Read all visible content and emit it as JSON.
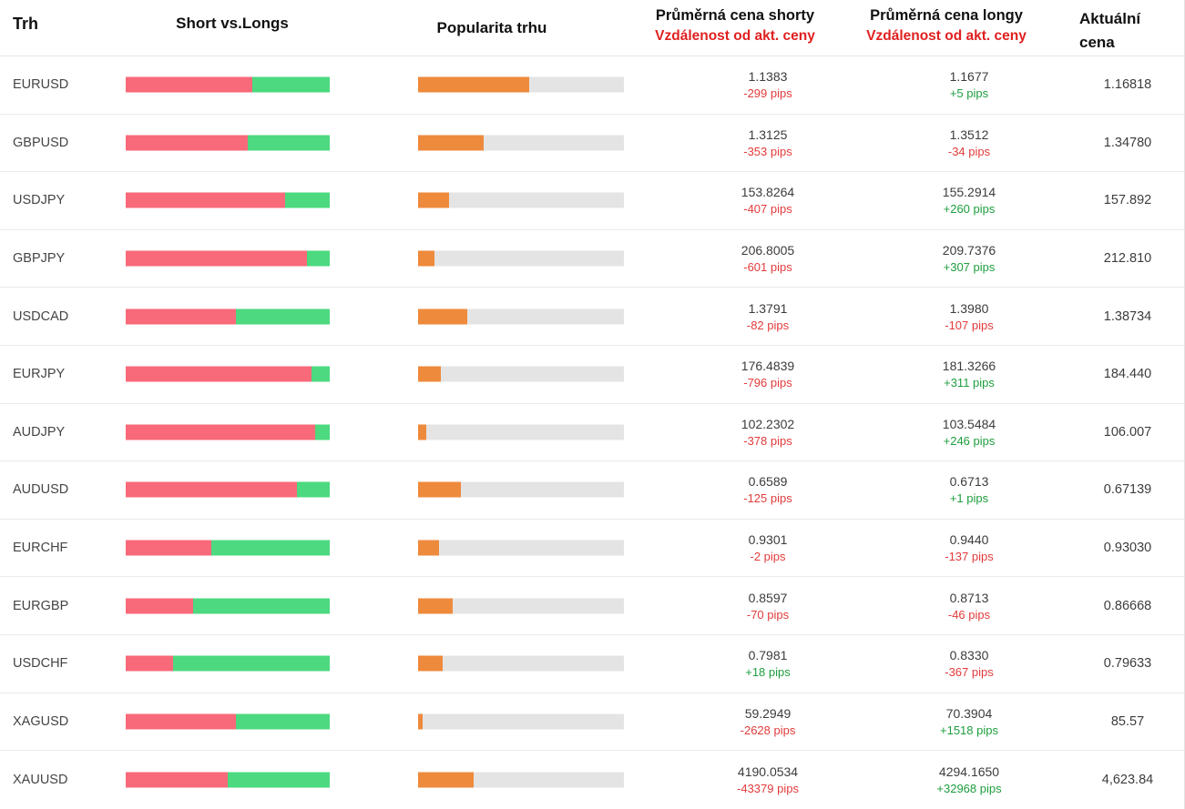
{
  "header": {
    "market": "Trh",
    "short_vs_longs": "Short vs.Longs",
    "popularity": "Popularita trhu",
    "avg_short_title": "Průměrná cena shorty",
    "avg_short_sub": "Vzdálenost od akt. ceny",
    "avg_long_title": "Průměrná cena longy",
    "avg_long_sub": "Vzdálenost od akt. ceny",
    "current_price": "Aktuální cena"
  },
  "colors": {
    "short_bar": "#f8697a",
    "long_bar": "#4cd97f",
    "popularity_bar": "#ee8a3c",
    "track": "#e4e4e4",
    "negative": "#e23b3b",
    "positive": "#1e9e3e",
    "header_red": "#e02020"
  },
  "rows": [
    {
      "market": "EURUSD",
      "short_pct": 62,
      "popularity_pct": 54,
      "short_price": "1.1383",
      "short_pips": "-299 pips",
      "long_price": "1.1677",
      "long_pips": "+5 pips",
      "current": "1.16818"
    },
    {
      "market": "GBPUSD",
      "short_pct": 60,
      "popularity_pct": 32,
      "short_price": "1.3125",
      "short_pips": "-353 pips",
      "long_price": "1.3512",
      "long_pips": "-34 pips",
      "current": "1.34780"
    },
    {
      "market": "USDJPY",
      "short_pct": 78,
      "popularity_pct": 15,
      "short_price": "153.8264",
      "short_pips": "-407 pips",
      "long_price": "155.2914",
      "long_pips": "+260 pips",
      "current": "157.892"
    },
    {
      "market": "GBPJPY",
      "short_pct": 89,
      "popularity_pct": 8,
      "short_price": "206.8005",
      "short_pips": "-601 pips",
      "long_price": "209.7376",
      "long_pips": "+307 pips",
      "current": "212.810"
    },
    {
      "market": "USDCAD",
      "short_pct": 54,
      "popularity_pct": 24,
      "short_price": "1.3791",
      "short_pips": "-82 pips",
      "long_price": "1.3980",
      "long_pips": "-107 pips",
      "current": "1.38734"
    },
    {
      "market": "EURJPY",
      "short_pct": 91,
      "popularity_pct": 11,
      "short_price": "176.4839",
      "short_pips": "-796 pips",
      "long_price": "181.3266",
      "long_pips": "+311 pips",
      "current": "184.440"
    },
    {
      "market": "AUDJPY",
      "short_pct": 93,
      "popularity_pct": 4,
      "short_price": "102.2302",
      "short_pips": "-378 pips",
      "long_price": "103.5484",
      "long_pips": "+246 pips",
      "current": "106.007"
    },
    {
      "market": "AUDUSD",
      "short_pct": 84,
      "popularity_pct": 21,
      "short_price": "0.6589",
      "short_pips": "-125 pips",
      "long_price": "0.6713",
      "long_pips": "+1 pips",
      "current": "0.67139"
    },
    {
      "market": "EURCHF",
      "short_pct": 42,
      "popularity_pct": 10,
      "short_price": "0.9301",
      "short_pips": "-2 pips",
      "long_price": "0.9440",
      "long_pips": "-137 pips",
      "current": "0.93030"
    },
    {
      "market": "EURGBP",
      "short_pct": 33,
      "popularity_pct": 17,
      "short_price": "0.8597",
      "short_pips": "-70 pips",
      "long_price": "0.8713",
      "long_pips": "-46 pips",
      "current": "0.86668"
    },
    {
      "market": "USDCHF",
      "short_pct": 23,
      "popularity_pct": 12,
      "short_price": "0.7981",
      "short_pips": "+18 pips",
      "long_price": "0.8330",
      "long_pips": "-367 pips",
      "current": "0.79633"
    },
    {
      "market": "XAGUSD",
      "short_pct": 54,
      "popularity_pct": 2,
      "short_price": "59.2949",
      "short_pips": "-2628 pips",
      "long_price": "70.3904",
      "long_pips": "+1518 pips",
      "current": "85.57"
    },
    {
      "market": "XAUUSD",
      "short_pct": 50,
      "popularity_pct": 27,
      "short_price": "4190.0534",
      "short_pips": "-43379 pips",
      "long_price": "4294.1650",
      "long_pips": "+32968 pips",
      "current": "4,623.84"
    }
  ]
}
